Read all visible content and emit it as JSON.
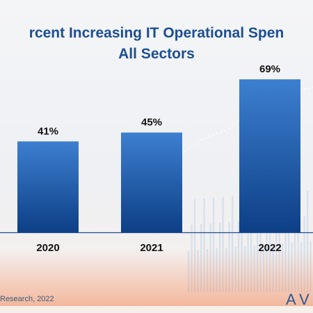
{
  "title_line1": "rcent Increasing IT Operational Spen",
  "title_line2": "All Sectors",
  "source": "Research, 2022",
  "logo_text": "AV",
  "colors": {
    "title": "#1d4e8f",
    "bar_top": "#3d7fd0",
    "bar_bottom": "#0d3f86",
    "axis": "#1d4e8f",
    "label": "#111111",
    "accent_orange": "#f08a5d"
  },
  "chart_data": {
    "type": "bar",
    "categories": [
      "2020",
      "2021",
      "2022"
    ],
    "series": [
      {
        "values": [
          41,
          45,
          69
        ]
      }
    ],
    "data_labels": [
      "41%",
      "45%",
      "69%"
    ],
    "title": "rcent Increasing IT Operational Spen All Sectors",
    "xlabel": "",
    "ylabel": "",
    "ylim": [
      0,
      80
    ],
    "grid": false,
    "legend": "none"
  }
}
